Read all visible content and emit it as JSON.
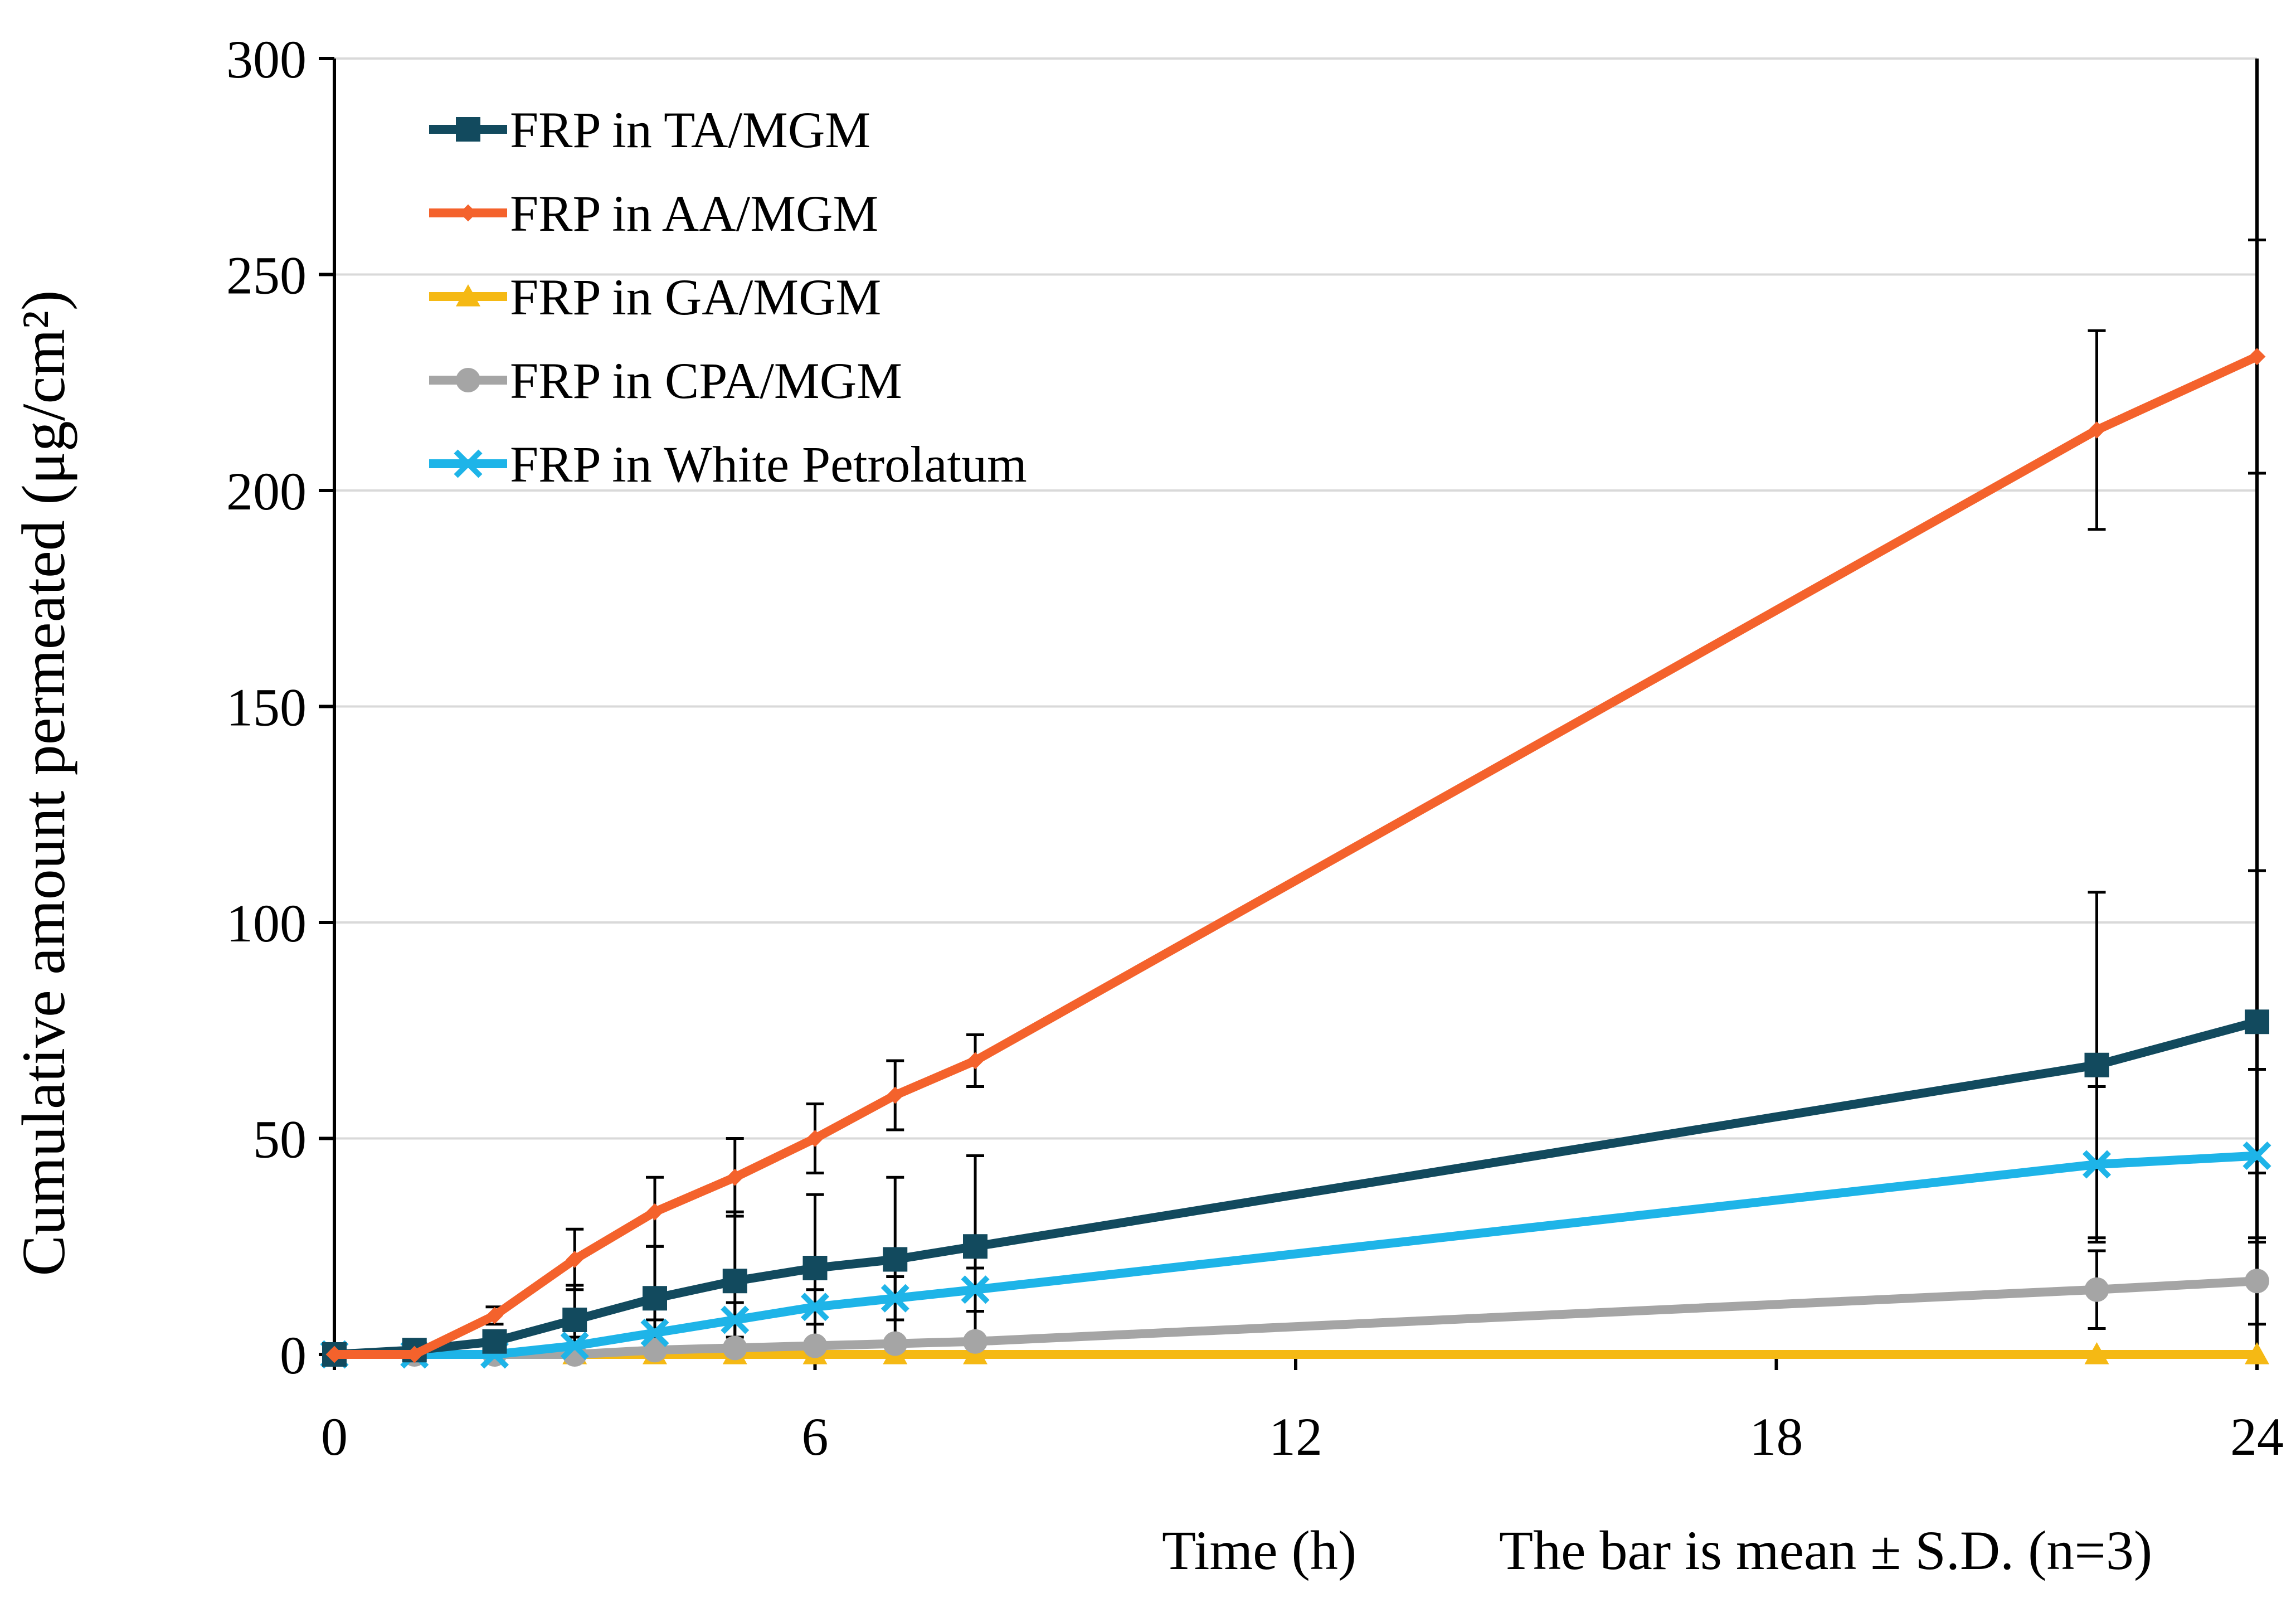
{
  "chart_data": {
    "type": "line",
    "title": "",
    "xlabel": "Time (h)",
    "ylabel": "Cumulative amount permeated (μg/cm²)",
    "note": "The bar is mean ± S.D. (n=3)",
    "xlim": [
      0,
      24
    ],
    "ylim": [
      0,
      300
    ],
    "xticks": [
      0,
      6,
      12,
      18,
      24
    ],
    "yticks": [
      0,
      50,
      100,
      150,
      200,
      250,
      300
    ],
    "grid": true,
    "legend_position": "top-left",
    "series": [
      {
        "name": "FRP in TA/MGM",
        "color": "#124a5e",
        "marker": "square",
        "x": [
          0,
          1,
          2,
          3,
          4,
          5,
          6,
          7,
          8,
          22,
          24
        ],
        "values": [
          0,
          1,
          3,
          8,
          13,
          17,
          20,
          22,
          25,
          67,
          77
        ],
        "errors": [
          0,
          0,
          1,
          8,
          12,
          16,
          17,
          19,
          21,
          40,
          35
        ]
      },
      {
        "name": "FRP in AA/MGM",
        "color": "#f4622c",
        "marker": "diamond",
        "x": [
          0,
          1,
          2,
          3,
          4,
          5,
          6,
          7,
          8,
          22,
          24
        ],
        "values": [
          0,
          0,
          9,
          22,
          33,
          41,
          50,
          60,
          68,
          214,
          231
        ],
        "errors": [
          0,
          0,
          2,
          7,
          8,
          9,
          8,
          8,
          6,
          23,
          27
        ]
      },
      {
        "name": "FRP in GA/MGM",
        "color": "#f5b914",
        "marker": "triangle",
        "x": [
          0,
          1,
          2,
          3,
          4,
          5,
          6,
          7,
          8,
          22,
          24
        ],
        "values": [
          0,
          0,
          0,
          0,
          0,
          0,
          0,
          0,
          0,
          0,
          0
        ],
        "errors": [
          0,
          0,
          0,
          0,
          0,
          0,
          0,
          0,
          0,
          0,
          0
        ]
      },
      {
        "name": "FRP in CPA/MGM",
        "color": "#a5a5a5",
        "marker": "circle",
        "x": [
          0,
          1,
          2,
          3,
          4,
          5,
          6,
          7,
          8,
          22,
          24
        ],
        "values": [
          0,
          0,
          0,
          0,
          1,
          1.5,
          2,
          2.5,
          3,
          15,
          17
        ],
        "errors": [
          0,
          0,
          0,
          0,
          1,
          1,
          1,
          1,
          1,
          9,
          10
        ]
      },
      {
        "name": "FRP in White Petrolatum",
        "color": "#1eb4e8",
        "marker": "x",
        "x": [
          0,
          1,
          2,
          3,
          4,
          5,
          6,
          7,
          8,
          22,
          24
        ],
        "values": [
          0,
          0,
          0,
          2,
          5,
          8,
          11,
          13,
          15,
          44,
          46
        ],
        "errors": [
          0,
          0,
          0,
          2,
          3,
          4,
          4,
          5,
          5,
          18,
          20
        ]
      }
    ]
  }
}
